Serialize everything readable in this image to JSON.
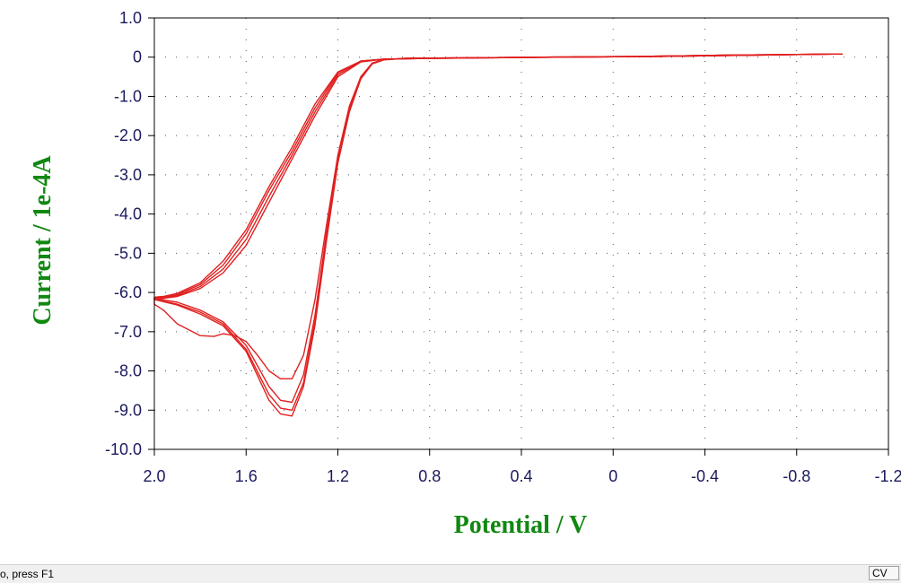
{
  "chart_data": {
    "type": "line",
    "title": "",
    "xlabel": "Potential / V",
    "ylabel": "Current / 1e-4A",
    "x_reversed": true,
    "xlim": [
      2.0,
      -1.2
    ],
    "ylim": [
      -10.0,
      1.0
    ],
    "x_ticks": [
      "2.0",
      "1.6",
      "1.2",
      "0.8",
      "0.4",
      "0",
      "-0.4",
      "-0.8",
      "-1.2"
    ],
    "y_ticks": [
      "1.0",
      "0",
      "-1.0",
      "-2.0",
      "-3.0",
      "-4.0",
      "-5.0",
      "-6.0",
      "-7.0",
      "-8.0",
      "-9.0",
      "-10.0"
    ],
    "grid": "dotted",
    "line_color": "#e02020",
    "axis_title_color": "#118811",
    "tick_label_color": "#1a1a5e",
    "series": [
      {
        "forward_x": [
          -1.0,
          -0.6,
          -0.2,
          0.2,
          0.6,
          0.8,
          1.0,
          1.1,
          1.2,
          1.3,
          1.4,
          1.5,
          1.6,
          1.7,
          1.8,
          1.9,
          1.96,
          2.0
        ],
        "forward_y": [
          0.08,
          0.05,
          0.02,
          0.0,
          -0.02,
          -0.03,
          -0.05,
          -0.1,
          -0.4,
          -1.3,
          -2.4,
          -3.4,
          -4.5,
          -5.3,
          -5.8,
          -6.05,
          -6.12,
          -6.15
        ],
        "reverse_x": [
          2.0,
          1.9,
          1.8,
          1.7,
          1.6,
          1.5,
          1.45,
          1.4,
          1.35,
          1.3,
          1.25,
          1.2,
          1.15,
          1.1,
          1.05,
          1.0,
          0.9,
          0.7,
          0.3,
          -0.1,
          -0.5,
          -1.0
        ],
        "reverse_y": [
          -6.15,
          -6.25,
          -6.45,
          -6.75,
          -7.35,
          -8.4,
          -8.75,
          -8.8,
          -8.1,
          -6.6,
          -4.5,
          -2.6,
          -1.3,
          -0.5,
          -0.15,
          -0.06,
          -0.03,
          -0.02,
          0.0,
          0.02,
          0.05,
          0.08
        ]
      },
      {
        "forward_x": [
          -1.0,
          -0.6,
          -0.2,
          0.2,
          0.6,
          0.8,
          1.0,
          1.1,
          1.2,
          1.3,
          1.4,
          1.5,
          1.6,
          1.7,
          1.8,
          1.9,
          1.96,
          2.0
        ],
        "forward_y": [
          0.08,
          0.05,
          0.02,
          0.0,
          -0.02,
          -0.03,
          -0.05,
          -0.1,
          -0.45,
          -1.4,
          -2.5,
          -3.55,
          -4.65,
          -5.4,
          -5.85,
          -6.08,
          -6.14,
          -6.17
        ],
        "reverse_x": [
          2.0,
          1.9,
          1.8,
          1.7,
          1.6,
          1.5,
          1.45,
          1.4,
          1.35,
          1.3,
          1.25,
          1.2,
          1.15,
          1.1,
          1.05,
          1.0,
          0.9,
          0.7,
          0.3,
          -0.1,
          -0.5,
          -1.0
        ],
        "reverse_y": [
          -6.17,
          -6.3,
          -6.5,
          -6.8,
          -7.45,
          -8.6,
          -8.95,
          -9.0,
          -8.3,
          -6.75,
          -4.6,
          -2.65,
          -1.35,
          -0.55,
          -0.16,
          -0.06,
          -0.03,
          -0.02,
          0.0,
          0.02,
          0.05,
          0.08
        ]
      },
      {
        "forward_x": [
          -1.0,
          -0.6,
          -0.2,
          0.2,
          0.6,
          0.8,
          1.0,
          1.1,
          1.2,
          1.3,
          1.4,
          1.5,
          1.6,
          1.7,
          1.8,
          1.9,
          1.96,
          2.0
        ],
        "forward_y": [
          0.08,
          0.05,
          0.02,
          0.0,
          -0.02,
          -0.03,
          -0.05,
          -0.12,
          -0.5,
          -1.5,
          -2.6,
          -3.7,
          -4.8,
          -5.5,
          -5.9,
          -6.1,
          -6.15,
          -6.18
        ],
        "reverse_x": [
          2.0,
          1.9,
          1.8,
          1.7,
          1.6,
          1.5,
          1.45,
          1.4,
          1.35,
          1.3,
          1.25,
          1.2,
          1.15,
          1.1,
          1.05,
          1.0,
          0.9,
          0.7,
          0.3,
          -0.1,
          -0.5,
          -1.0
        ],
        "reverse_y": [
          -6.18,
          -6.32,
          -6.55,
          -6.85,
          -7.5,
          -8.75,
          -9.1,
          -9.15,
          -8.4,
          -6.85,
          -4.7,
          -2.7,
          -1.4,
          -0.55,
          -0.17,
          -0.07,
          -0.03,
          -0.02,
          0.0,
          0.02,
          0.05,
          0.08
        ]
      },
      {
        "forward_x": [
          -1.0,
          -0.6,
          -0.2,
          0.2,
          0.6,
          0.8,
          1.0,
          1.1,
          1.2,
          1.3,
          1.4,
          1.5,
          1.6,
          1.7,
          1.8,
          1.9,
          1.96,
          2.0
        ],
        "forward_y": [
          0.08,
          0.05,
          0.02,
          0.0,
          -0.02,
          -0.03,
          -0.05,
          -0.1,
          -0.38,
          -1.2,
          -2.3,
          -3.3,
          -4.4,
          -5.2,
          -5.75,
          -6.02,
          -6.1,
          -6.12
        ],
        "reverse_x": [
          2.0,
          1.96,
          1.9,
          1.8,
          1.74,
          1.7,
          1.65,
          1.6,
          1.55,
          1.5,
          1.45,
          1.4,
          1.35,
          1.3,
          1.25,
          1.2,
          1.15,
          1.1,
          1.05,
          1.0,
          0.9,
          0.7,
          0.3,
          -0.1,
          -0.5,
          -1.0
        ],
        "reverse_y": [
          -6.3,
          -6.45,
          -6.8,
          -7.1,
          -7.12,
          -7.05,
          -7.1,
          -7.25,
          -7.6,
          -8.0,
          -8.2,
          -8.2,
          -7.6,
          -6.2,
          -4.3,
          -2.5,
          -1.25,
          -0.5,
          -0.15,
          -0.06,
          -0.03,
          -0.02,
          0.0,
          0.02,
          0.05,
          0.08
        ]
      }
    ]
  },
  "status_bar": {
    "help_text": "o, press F1",
    "mode_label": "CV"
  }
}
